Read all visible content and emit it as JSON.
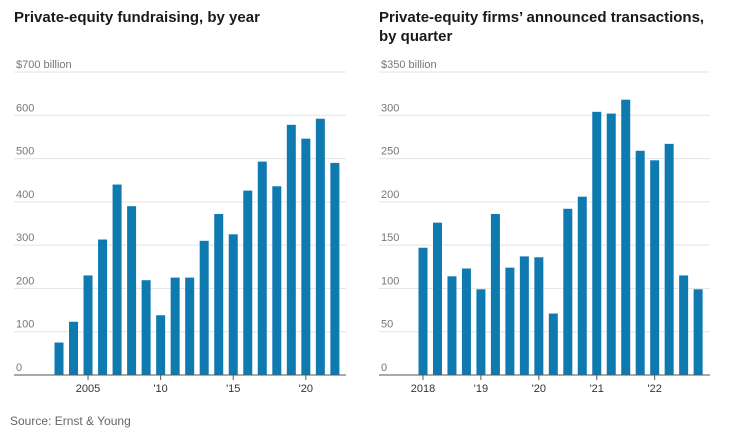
{
  "source": "Source: Ernst & Young",
  "chart_data": [
    {
      "type": "bar",
      "title": "Private-equity fundraising, by year",
      "ylim": [
        0,
        700
      ],
      "y_ticks": [
        "$700 billion",
        "600",
        "500",
        "400",
        "300",
        "200",
        "100",
        "0"
      ],
      "x_ticks": [
        "2005",
        "'10",
        "'15",
        "'20"
      ],
      "categories": [
        "2003",
        "2004",
        "2005",
        "2006",
        "2007",
        "2008",
        "2009",
        "2010",
        "2011",
        "2012",
        "2013",
        "2014",
        "2015",
        "2016",
        "2017",
        "2018",
        "2019",
        "2020",
        "2021",
        "2022"
      ],
      "values": [
        75,
        123,
        230,
        313,
        440,
        390,
        219,
        138,
        225,
        225,
        310,
        372,
        325,
        426,
        493,
        436,
        578,
        546,
        592,
        490
      ],
      "grid": true,
      "colors": {
        "bar": "#0f7ab0"
      }
    },
    {
      "type": "bar",
      "title": "Private-equity firms’ announced transactions, by quarter",
      "ylim": [
        0,
        350
      ],
      "y_ticks": [
        "$350 billion",
        "300",
        "250",
        "200",
        "150",
        "100",
        "50",
        "0"
      ],
      "x_ticks": [
        "2018",
        "'19",
        "'20",
        "'21",
        "'22"
      ],
      "categories": [
        "Q1 2018",
        "Q2 2018",
        "Q3 2018",
        "Q4 2018",
        "Q1 2019",
        "Q2 2019",
        "Q3 2019",
        "Q4 2019",
        "Q1 2020",
        "Q2 2020",
        "Q3 2020",
        "Q4 2020",
        "Q1 2021",
        "Q2 2021",
        "Q3 2021",
        "Q4 2021",
        "Q1 2022",
        "Q2 2022",
        "Q3 2022",
        "Q4 2022"
      ],
      "values": [
        147,
        176,
        114,
        123,
        99,
        186,
        124,
        137,
        136,
        71,
        192,
        206,
        304,
        302,
        318,
        259,
        248,
        267,
        115,
        99
      ],
      "grid": true,
      "colors": {
        "bar": "#0f7ab0"
      }
    }
  ]
}
